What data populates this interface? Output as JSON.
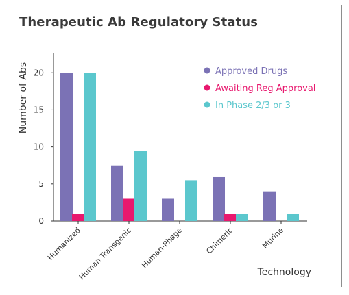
{
  "title": "Therapeutic Ab Regulatory Status",
  "chart_data": {
    "type": "bar",
    "title": "Therapeutic Ab Regulatory Status",
    "xlabel": "Technology",
    "ylabel": "Number of Abs",
    "categories": [
      "Humanized",
      "Human Transgenic",
      "Human-Phage",
      "Chimeric",
      "Murine"
    ],
    "series": [
      {
        "name": "Approved Drugs",
        "color": "#7b72b5",
        "values": [
          20,
          7.5,
          3,
          6,
          4
        ]
      },
      {
        "name": "Awaiting Reg Approval",
        "color": "#e8186e",
        "values": [
          1,
          3,
          0,
          1,
          0
        ]
      },
      {
        "name": "In Phase 2/3 or 3",
        "color": "#5bc7cd",
        "values": [
          20,
          9.5,
          5.5,
          1,
          1
        ]
      }
    ],
    "yticks": [
      "0",
      "5",
      "10",
      "15",
      "20"
    ],
    "ylim": [
      0,
      21.5
    ],
    "grid": false,
    "legend": "top-right"
  }
}
